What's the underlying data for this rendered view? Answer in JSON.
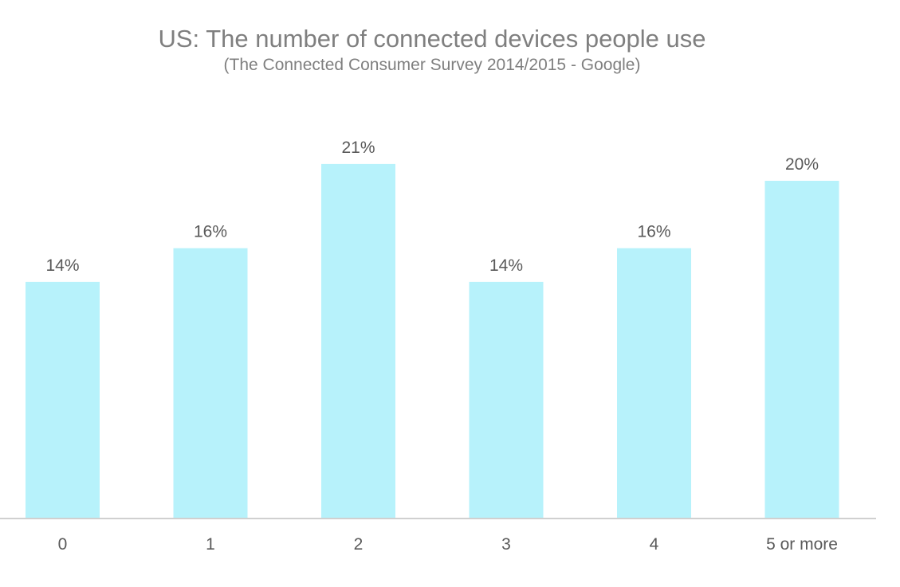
{
  "chart_data": {
    "type": "bar",
    "title": "US: The number of connected devices people use",
    "subtitle": "(The Connected Consumer Survey 2014/2015 - Google)",
    "categories": [
      "0",
      "1",
      "2",
      "3",
      "4",
      "5 or more"
    ],
    "values": [
      14,
      16,
      21,
      14,
      16,
      20
    ],
    "data_labels": [
      "14%",
      "16%",
      "21%",
      "14%",
      "16%",
      "20%"
    ],
    "unit": "%",
    "xlabel": "",
    "ylabel": "",
    "ylim": [
      0,
      21
    ],
    "grid": false,
    "legend": "none",
    "bar_color": "#b7f2fb"
  }
}
